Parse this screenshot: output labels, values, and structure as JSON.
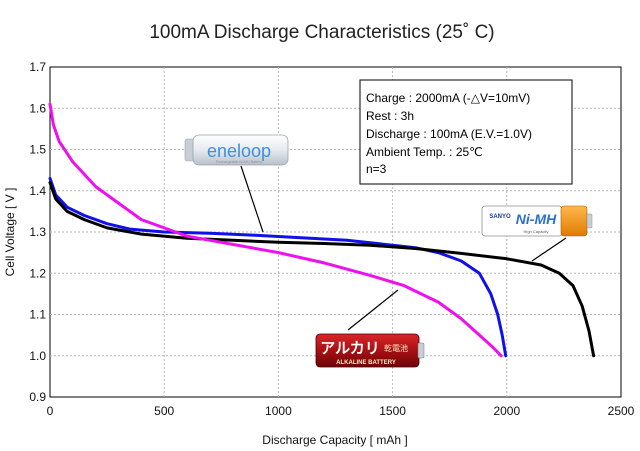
{
  "chart_data": {
    "type": "line",
    "title": "100mA Discharge Characteristics (25˚ C)",
    "xlabel": "Discharge Capacity [ mAh ]",
    "ylabel": "Cell Voltage [ V ]",
    "xlim": [
      0,
      2500
    ],
    "ylim": [
      0.9,
      1.7
    ],
    "xticks": [
      "0",
      "500",
      "1000",
      "1500",
      "2000",
      "2500"
    ],
    "yticks": [
      "0.9",
      "1.0",
      "1.1",
      "1.2",
      "1.3",
      "1.4",
      "1.5",
      "1.6",
      "1.7"
    ],
    "grid": true,
    "info_box": [
      "Charge : 2000mA (-△V=10mV)",
      "Rest : 3h",
      "Discharge : 100mA (E.V.=1.0V)",
      "Ambient Temp. : 25℃",
      "n=3"
    ],
    "series": [
      {
        "name": "eneloop",
        "color": "#1010e8",
        "points": [
          [
            0,
            1.43
          ],
          [
            25,
            1.39
          ],
          [
            75,
            1.36
          ],
          [
            150,
            1.34
          ],
          [
            250,
            1.32
          ],
          [
            350,
            1.307
          ],
          [
            500,
            1.3
          ],
          [
            700,
            1.297
          ],
          [
            900,
            1.292
          ],
          [
            1100,
            1.286
          ],
          [
            1300,
            1.28
          ],
          [
            1500,
            1.268
          ],
          [
            1600,
            1.262
          ],
          [
            1700,
            1.25
          ],
          [
            1800,
            1.23
          ],
          [
            1880,
            1.2
          ],
          [
            1930,
            1.15
          ],
          [
            1960,
            1.1
          ],
          [
            1980,
            1.05
          ],
          [
            1995,
            1.0
          ]
        ]
      },
      {
        "name": "NI-MH",
        "color": "#000000",
        "points": [
          [
            0,
            1.42
          ],
          [
            25,
            1.38
          ],
          [
            75,
            1.35
          ],
          [
            150,
            1.33
          ],
          [
            250,
            1.31
          ],
          [
            400,
            1.295
          ],
          [
            600,
            1.285
          ],
          [
            800,
            1.28
          ],
          [
            1000,
            1.275
          ],
          [
            1200,
            1.272
          ],
          [
            1400,
            1.268
          ],
          [
            1600,
            1.26
          ],
          [
            1800,
            1.248
          ],
          [
            2000,
            1.235
          ],
          [
            2150,
            1.22
          ],
          [
            2230,
            1.2
          ],
          [
            2290,
            1.17
          ],
          [
            2330,
            1.12
          ],
          [
            2360,
            1.06
          ],
          [
            2380,
            1.0
          ]
        ]
      },
      {
        "name": "アルカリ 乾電池",
        "color": "#ee10ee",
        "points": [
          [
            0,
            1.61
          ],
          [
            15,
            1.56
          ],
          [
            40,
            1.52
          ],
          [
            100,
            1.47
          ],
          [
            200,
            1.41
          ],
          [
            300,
            1.37
          ],
          [
            400,
            1.33
          ],
          [
            500,
            1.31
          ],
          [
            600,
            1.29
          ],
          [
            700,
            1.28
          ],
          [
            800,
            1.27
          ],
          [
            1000,
            1.25
          ],
          [
            1200,
            1.225
          ],
          [
            1400,
            1.195
          ],
          [
            1550,
            1.17
          ],
          [
            1700,
            1.13
          ],
          [
            1800,
            1.09
          ],
          [
            1880,
            1.05
          ],
          [
            1940,
            1.02
          ],
          [
            1975,
            1.0
          ]
        ]
      }
    ]
  },
  "labels": {
    "eneloop_logo": "eneloop",
    "eneloop_subtext": "Rechargeable Ni-MH Battery",
    "nimh_brand": "SANYO",
    "nimh_logo": "Ni-MH",
    "nimh_cap": "High Capacity",
    "alkaline_logo": "アルカリ",
    "alkaline_kanji": "乾電池",
    "alkaline_sub": "ALKALINE BATTERY"
  }
}
